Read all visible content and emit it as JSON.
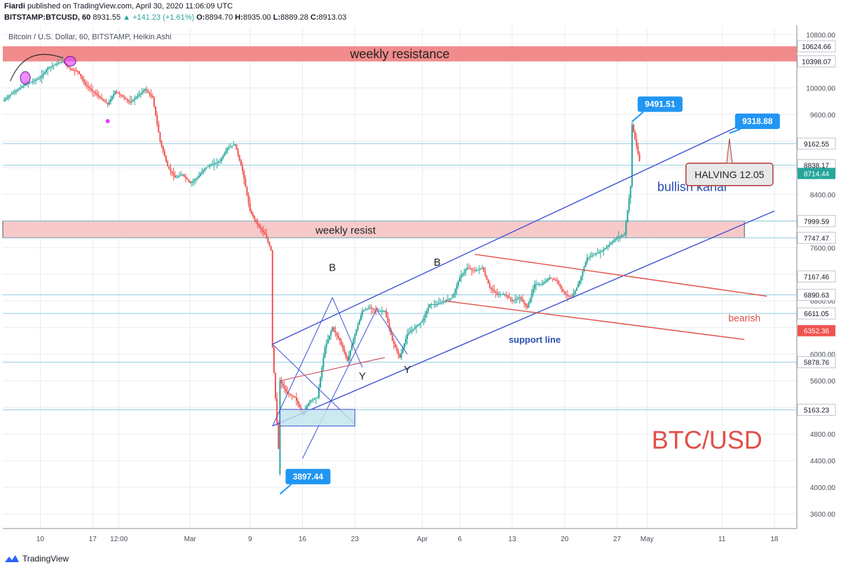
{
  "header": {
    "author": "Fiardi",
    "published": "published on TradingView.com, April 30, 2020 11:06:09 UTC",
    "symbol": "BITSTAMP:BTCUSD, 60",
    "last": "8931.55",
    "change": "▲ +141.23 (+1.61%)",
    "o_label": "O:",
    "o": "8894.70",
    "h_label": "H:",
    "h": "8935.00",
    "l_label": "L:",
    "l": "8889.28",
    "c_label": "C:",
    "c": "8913.03"
  },
  "footer": {
    "brand": "TradingView",
    "logo_icon": "tradingview-logo-icon"
  },
  "colors": {
    "up": "#26a69a",
    "down": "#ef5350",
    "channel": "#3f51d6",
    "bear": "#e0504a",
    "resistance_fill": "#f28b8b",
    "resist_fill": "#f8c9c9",
    "level": "#8fcbe0",
    "callout": "#2196f3",
    "pink": "#e040fb",
    "grid": "#e9ecf1"
  },
  "chart_data": {
    "type": "candlestick",
    "title": "Bitcoin / U.S. Dollar, 60, BITSTAMP, Heikin Ashi",
    "ylim": [
      3380,
      10920
    ],
    "y_ticks": [
      "3600.00",
      "4000.00",
      "4400.00",
      "4800.00",
      "5200.00",
      "5600.00",
      "6000.00",
      "6400.00",
      "6800.00",
      "7200.00",
      "7600.00",
      "8000.00",
      "8400.00",
      "8800.00",
      "9200.00",
      "9600.00",
      "10000.00",
      "10400.00",
      "10800.00"
    ],
    "x_ticks": [
      "10",
      "17",
      "12:00",
      "Mar",
      "9",
      "16",
      "23",
      "Apr",
      "6",
      "13",
      "20",
      "27",
      "May",
      "11",
      "18"
    ],
    "price_path": [
      [
        "2020-02-05",
        9800
      ],
      [
        "2020-02-06",
        9900
      ],
      [
        "2020-02-08",
        10050
      ],
      [
        "2020-02-10",
        10150
      ],
      [
        "2020-02-11",
        10300
      ],
      [
        "2020-02-13",
        10400
      ],
      [
        "2020-02-14",
        10280
      ],
      [
        "2020-02-15",
        10250
      ],
      [
        "2020-02-16",
        10050
      ],
      [
        "2020-02-18",
        9850
      ],
      [
        "2020-02-19",
        9750
      ],
      [
        "2020-02-20",
        9950
      ],
      [
        "2020-02-22",
        9780
      ],
      [
        "2020-02-24",
        9980
      ],
      [
        "2020-02-25",
        9850
      ],
      [
        "2020-02-26",
        9200
      ],
      [
        "2020-02-27",
        8820
      ],
      [
        "2020-02-28",
        8650
      ],
      [
        "2020-02-29",
        8700
      ],
      [
        "2020-03-01",
        8570
      ],
      [
        "2020-03-02",
        8650
      ],
      [
        "2020-03-03",
        8800
      ],
      [
        "2020-03-05",
        8900
      ],
      [
        "2020-03-06",
        9100
      ],
      [
        "2020-03-07",
        9150
      ],
      [
        "2020-03-08",
        8750
      ],
      [
        "2020-03-09",
        8150
      ],
      [
        "2020-03-10",
        7950
      ],
      [
        "2020-03-11",
        7800
      ],
      [
        "2020-03-12",
        7500
      ],
      [
        "2020-03-12",
        6100
      ],
      [
        "2020-03-13",
        4200
      ],
      [
        "2020-03-13",
        5600
      ],
      [
        "2020-03-14",
        5400
      ],
      [
        "2020-03-15",
        5350
      ],
      [
        "2020-03-16",
        5100
      ],
      [
        "2020-03-17",
        5300
      ],
      [
        "2020-03-18",
        5350
      ],
      [
        "2020-03-19",
        6100
      ],
      [
        "2020-03-20",
        6400
      ],
      [
        "2020-03-21",
        6200
      ],
      [
        "2020-03-22",
        5900
      ],
      [
        "2020-03-23",
        6300
      ],
      [
        "2020-03-24",
        6650
      ],
      [
        "2020-03-25",
        6700
      ],
      [
        "2020-03-26",
        6650
      ],
      [
        "2020-03-27",
        6650
      ],
      [
        "2020-03-28",
        6200
      ],
      [
        "2020-03-29",
        5950
      ],
      [
        "2020-03-30",
        6300
      ],
      [
        "2020-03-31",
        6400
      ],
      [
        "2020-04-01",
        6500
      ],
      [
        "2020-04-02",
        6750
      ],
      [
        "2020-04-03",
        6750
      ],
      [
        "2020-04-04",
        6800
      ],
      [
        "2020-04-05",
        6850
      ],
      [
        "2020-04-06",
        7150
      ],
      [
        "2020-04-07",
        7300
      ],
      [
        "2020-04-08",
        7250
      ],
      [
        "2020-04-09",
        7300
      ],
      [
        "2020-04-10",
        7000
      ],
      [
        "2020-04-11",
        6900
      ],
      [
        "2020-04-12",
        6900
      ],
      [
        "2020-04-13",
        6800
      ],
      [
        "2020-04-14",
        6850
      ],
      [
        "2020-04-15",
        6700
      ],
      [
        "2020-04-16",
        7050
      ],
      [
        "2020-04-17",
        7050
      ],
      [
        "2020-04-18",
        7150
      ],
      [
        "2020-04-19",
        7100
      ],
      [
        "2020-04-20",
        6900
      ],
      [
        "2020-04-21",
        6850
      ],
      [
        "2020-04-22",
        7100
      ],
      [
        "2020-04-23",
        7450
      ],
      [
        "2020-04-24",
        7500
      ],
      [
        "2020-04-25",
        7550
      ],
      [
        "2020-04-26",
        7650
      ],
      [
        "2020-04-27",
        7750
      ],
      [
        "2020-04-28",
        7800
      ],
      [
        "2020-04-29",
        8700
      ],
      [
        "2020-04-29",
        9450
      ],
      [
        "2020-04-30",
        8900
      ]
    ],
    "price_labels": [
      {
        "value": 10624.66,
        "text": "10624.66",
        "style": "outline"
      },
      {
        "value": 10398.07,
        "text": "10398.07",
        "style": "outline"
      },
      {
        "value": 9162.55,
        "text": "9162.55",
        "style": "outline"
      },
      {
        "value": 8838.17,
        "text": "8838.17",
        "style": "outline"
      },
      {
        "value": 8714.44,
        "text": "8714.44",
        "style": "green"
      },
      {
        "value": 7999.59,
        "text": "7999.59",
        "style": "outline"
      },
      {
        "value": 7747.47,
        "text": "7747.47",
        "style": "outline"
      },
      {
        "value": 7167.46,
        "text": "7167.46",
        "style": "outline"
      },
      {
        "value": 6890.63,
        "text": "6890.63",
        "style": "outline"
      },
      {
        "value": 6611.05,
        "text": "6611.05",
        "style": "outline"
      },
      {
        "value": 6352.36,
        "text": "6352.36",
        "style": "red"
      },
      {
        "value": 5878.76,
        "text": "5878.76",
        "style": "outline"
      },
      {
        "value": 5163.23,
        "text": "5163.23",
        "style": "outline"
      }
    ],
    "zones": [
      {
        "id": "weekly-resistance",
        "from": 10398.07,
        "to": 10624.66,
        "label": "weekly resistance",
        "x_start": "2020-02-05",
        "x_end": "right"
      },
      {
        "id": "weekly-resist",
        "from": 7747.47,
        "to": 7999.59,
        "label": "weekly resist",
        "x_start": "2020-02-05",
        "x_end": "2020-05-14"
      }
    ],
    "horizontal_levels": [
      9162.55,
      8838.17,
      7999.59,
      7747.47,
      6890.63,
      6611.05,
      5878.76,
      5163.23
    ],
    "trendlines": [
      {
        "id": "channel-upper",
        "points": [
          [
            "2020-03-12",
            6150
          ],
          [
            "2020-05-16",
            9570
          ]
        ],
        "color": "channel"
      },
      {
        "id": "channel-lower",
        "points": [
          [
            "2020-03-12",
            4920
          ],
          [
            "2020-05-18",
            8150
          ]
        ],
        "color": "channel"
      },
      {
        "id": "bear-upper",
        "points": [
          [
            "2020-04-08",
            7500
          ],
          [
            "2020-05-17",
            6870
          ]
        ],
        "color": "bear"
      },
      {
        "id": "bear-lower",
        "points": [
          [
            "2020-04-04",
            6800
          ],
          [
            "2020-05-14",
            6220
          ]
        ],
        "color": "bear"
      }
    ],
    "callouts": [
      {
        "value": 9491.51,
        "date": "2020-04-29",
        "text": "9491.51"
      },
      {
        "value": 9318.88,
        "date": "2020-05-12",
        "text": "9318.88"
      },
      {
        "value": 3897.44,
        "date": "2020-03-13",
        "text": "3897.44"
      }
    ],
    "annotations": [
      {
        "text": "B",
        "date": "2020-03-20",
        "value": 7250
      },
      {
        "text": "B",
        "date": "2020-04-03",
        "value": 7330
      },
      {
        "text": "Y",
        "date": "2020-03-24",
        "value": 5620
      },
      {
        "text": "Y",
        "date": "2020-03-30",
        "value": 5720
      },
      {
        "text": "bullish kanal",
        "date": "2020-05-07",
        "value": 8450
      },
      {
        "text": "support line",
        "date": "2020-04-16",
        "value": 6170
      },
      {
        "text": "bearish",
        "date": "2020-05-14",
        "value": 6490
      },
      {
        "text": "BTC/USD",
        "date": "2020-05-09",
        "value": 4580
      },
      {
        "text": "HALVING 12.05",
        "date": "2020-05-12",
        "value": 8700
      }
    ]
  }
}
